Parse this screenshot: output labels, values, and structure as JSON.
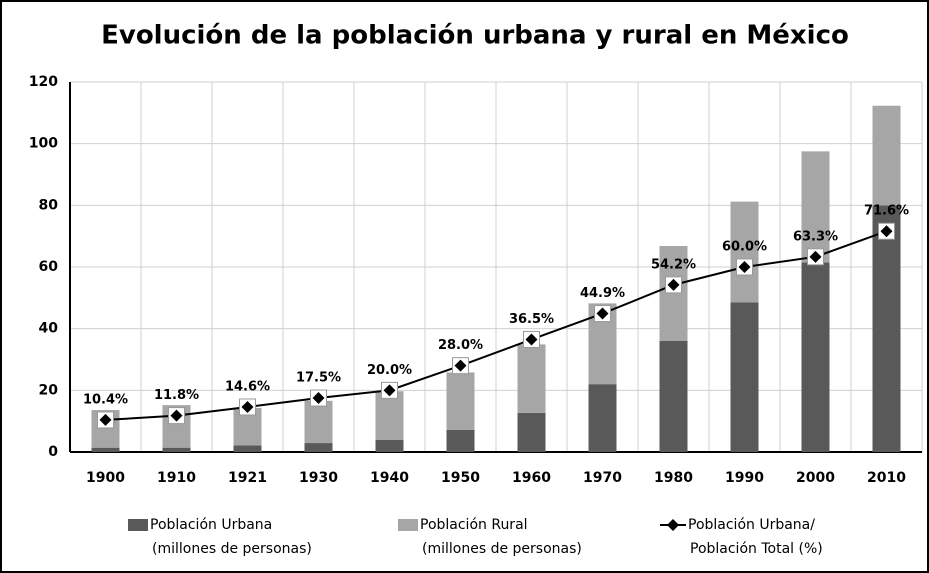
{
  "chart_data": {
    "type": "stacked_bar_line",
    "title": "Evolución de la población urbana y rural en México",
    "categories": [
      "1900",
      "1910",
      "1921",
      "1930",
      "1940",
      "1950",
      "1960",
      "1970",
      "1980",
      "1990",
      "2000",
      "2010"
    ],
    "series": [
      {
        "name": "Población Urbana\n(millones de personas)",
        "kind": "bar",
        "color": "#595959",
        "values": [
          1.4,
          1.4,
          2.1,
          2.9,
          3.9,
          7.2,
          12.7,
          22,
          36,
          48.5,
          61.5,
          80
        ]
      },
      {
        "name": "Población Rural\n(millones de personas)",
        "kind": "bar",
        "color": "#a6a6a6",
        "values": [
          12.2,
          13.8,
          12.2,
          13.7,
          15.8,
          18.6,
          22.2,
          26.2,
          30.8,
          32.7,
          36,
          32.3
        ]
      },
      {
        "name": "Población Urbana/\nPoblación Total (%)",
        "kind": "line",
        "color": "#000000",
        "values": [
          10.4,
          11.8,
          14.6,
          17.5,
          20.0,
          28.0,
          36.5,
          44.9,
          54.2,
          60.0,
          63.3,
          71.6
        ],
        "value_labels": [
          "10.4%",
          "11.8%",
          "14.6%",
          "17.5%",
          "20.0%",
          "28.0%",
          "36.5%",
          "44.9%",
          "54.2%",
          "60.0%",
          "63.3%",
          "71.6%"
        ]
      }
    ],
    "ylim": [
      0,
      120
    ],
    "yticks": [
      0,
      20,
      40,
      60,
      80,
      100,
      120
    ],
    "grid": true
  }
}
